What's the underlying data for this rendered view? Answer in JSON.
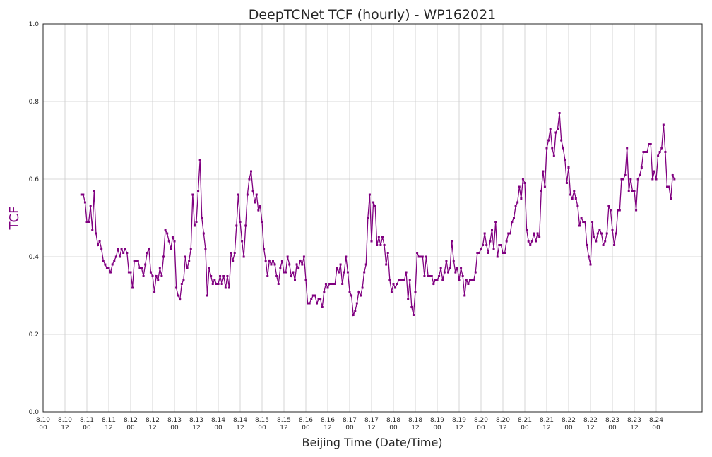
{
  "chart_data": {
    "type": "line",
    "title": "DeepTCNet TCF (hourly) - WP162021",
    "xlabel": "Beijing Time (Date/Time)",
    "ylabel": "TCF",
    "ylim": [
      0.0,
      1.0
    ],
    "yticks": [
      "0.0",
      "0.2",
      "0.4",
      "0.6",
      "0.8",
      "1.0"
    ],
    "x_tick_labels": [
      [
        "8.10",
        "00"
      ],
      [
        "8.10",
        "12"
      ],
      [
        "8.11",
        "00"
      ],
      [
        "8.11",
        "12"
      ],
      [
        "8.12",
        "00"
      ],
      [
        "8.12",
        "12"
      ],
      [
        "8.13",
        "00"
      ],
      [
        "8.13",
        "12"
      ],
      [
        "8.14",
        "00"
      ],
      [
        "8.14",
        "12"
      ],
      [
        "8.15",
        "00"
      ],
      [
        "8.15",
        "12"
      ],
      [
        "8.16",
        "00"
      ],
      [
        "8.16",
        "12"
      ],
      [
        "8.17",
        "00"
      ],
      [
        "8.17",
        "12"
      ],
      [
        "8.18",
        "00"
      ],
      [
        "8.18",
        "12"
      ],
      [
        "8.19",
        "00"
      ],
      [
        "8.19",
        "12"
      ],
      [
        "8.20",
        "00"
      ],
      [
        "8.20",
        "12"
      ],
      [
        "8.21",
        "00"
      ],
      [
        "8.21",
        "12"
      ],
      [
        "8.22",
        "00"
      ],
      [
        "8.22",
        "12"
      ],
      [
        "8.23",
        "00"
      ],
      [
        "8.23",
        "12"
      ],
      [
        "8.24",
        "00"
      ]
    ],
    "grid": true,
    "line_color": "#800080",
    "series": [
      {
        "start": "8.10 21:00",
        "interval_hours": 1,
        "values": [
          0.56,
          0.56,
          0.54,
          0.49,
          0.49,
          0.53,
          0.47,
          0.57,
          0.46,
          0.43,
          0.44,
          0.42,
          0.39,
          0.38,
          0.37,
          0.37,
          0.36,
          0.38,
          0.39,
          0.4,
          0.42,
          0.4,
          0.42,
          0.41,
          0.42,
          0.41,
          0.36,
          0.36,
          0.32,
          0.39,
          0.39,
          0.39,
          0.37,
          0.37,
          0.35,
          0.38,
          0.41,
          0.42,
          0.36,
          0.35,
          0.31,
          0.35,
          0.34,
          0.37,
          0.35,
          0.4,
          0.47,
          0.46,
          0.44,
          0.42,
          0.45,
          0.44,
          0.32,
          0.3,
          0.29,
          0.33,
          0.34,
          0.4,
          0.37,
          0.39,
          0.42,
          0.56,
          0.48,
          0.49,
          0.57,
          0.65,
          0.5,
          0.46,
          0.42,
          0.3,
          0.37,
          0.35,
          0.33,
          0.34,
          0.33,
          0.33,
          0.35,
          0.33,
          0.35,
          0.32,
          0.35,
          0.32,
          0.41,
          0.39,
          0.41,
          0.48,
          0.56,
          0.49,
          0.44,
          0.4,
          0.48,
          0.56,
          0.6,
          0.62,
          0.57,
          0.54,
          0.56,
          0.52,
          0.53,
          0.49,
          0.42,
          0.39,
          0.35,
          0.39,
          0.38,
          0.39,
          0.38,
          0.35,
          0.33,
          0.37,
          0.39,
          0.36,
          0.36,
          0.4,
          0.38,
          0.35,
          0.36,
          0.34,
          0.38,
          0.37,
          0.39,
          0.38,
          0.4,
          0.34,
          0.28,
          0.28,
          0.29,
          0.3,
          0.3,
          0.28,
          0.29,
          0.29,
          0.27,
          0.31,
          0.33,
          0.32,
          0.33,
          0.33,
          0.33,
          0.33,
          0.37,
          0.36,
          0.38,
          0.33,
          0.36,
          0.4,
          0.36,
          0.31,
          0.3,
          0.25,
          0.26,
          0.28,
          0.31,
          0.3,
          0.32,
          0.36,
          0.38,
          0.5,
          0.56,
          0.44,
          0.54,
          0.53,
          0.43,
          0.45,
          0.43,
          0.45,
          0.43,
          0.38,
          0.41,
          0.34,
          0.31,
          0.33,
          0.32,
          0.33,
          0.34,
          0.34,
          0.34,
          0.34,
          0.36,
          0.29,
          0.34,
          0.27,
          0.25,
          0.31,
          0.41,
          0.4,
          0.4,
          0.4,
          0.35,
          0.4,
          0.35,
          0.35,
          0.35,
          0.33,
          0.34,
          0.34,
          0.35,
          0.37,
          0.34,
          0.36,
          0.39,
          0.36,
          0.37,
          0.44,
          0.39,
          0.36,
          0.37,
          0.34,
          0.37,
          0.35,
          0.3,
          0.34,
          0.33,
          0.34,
          0.34,
          0.34,
          0.36,
          0.41,
          0.41,
          0.42,
          0.43,
          0.46,
          0.43,
          0.41,
          0.44,
          0.47,
          0.42,
          0.49,
          0.4,
          0.43,
          0.43,
          0.41,
          0.41,
          0.44,
          0.46,
          0.46,
          0.49,
          0.5,
          0.53,
          0.54,
          0.58,
          0.55,
          0.6,
          0.59,
          0.47,
          0.44,
          0.43,
          0.44,
          0.46,
          0.44,
          0.46,
          0.45,
          0.57,
          0.62,
          0.58,
          0.68,
          0.7,
          0.73,
          0.68,
          0.66,
          0.72,
          0.73,
          0.77,
          0.7,
          0.68,
          0.65,
          0.59,
          0.63,
          0.56,
          0.55,
          0.57,
          0.55,
          0.53,
          0.48,
          0.5,
          0.49,
          0.49,
          0.43,
          0.4,
          0.38,
          0.49,
          0.45,
          0.44,
          0.46,
          0.47,
          0.46,
          0.43,
          0.44,
          0.46,
          0.53,
          0.52,
          0.47,
          0.43,
          0.46,
          0.52,
          0.52,
          0.6,
          0.6,
          0.61,
          0.68,
          0.57,
          0.6,
          0.57,
          0.57,
          0.52,
          0.6,
          0.61,
          0.63,
          0.67,
          0.67,
          0.67,
          0.69,
          0.69,
          0.6,
          0.62,
          0.6,
          0.66,
          0.67,
          0.68,
          0.74,
          0.67,
          0.58,
          0.58,
          0.55,
          0.61,
          0.6
        ]
      }
    ]
  }
}
